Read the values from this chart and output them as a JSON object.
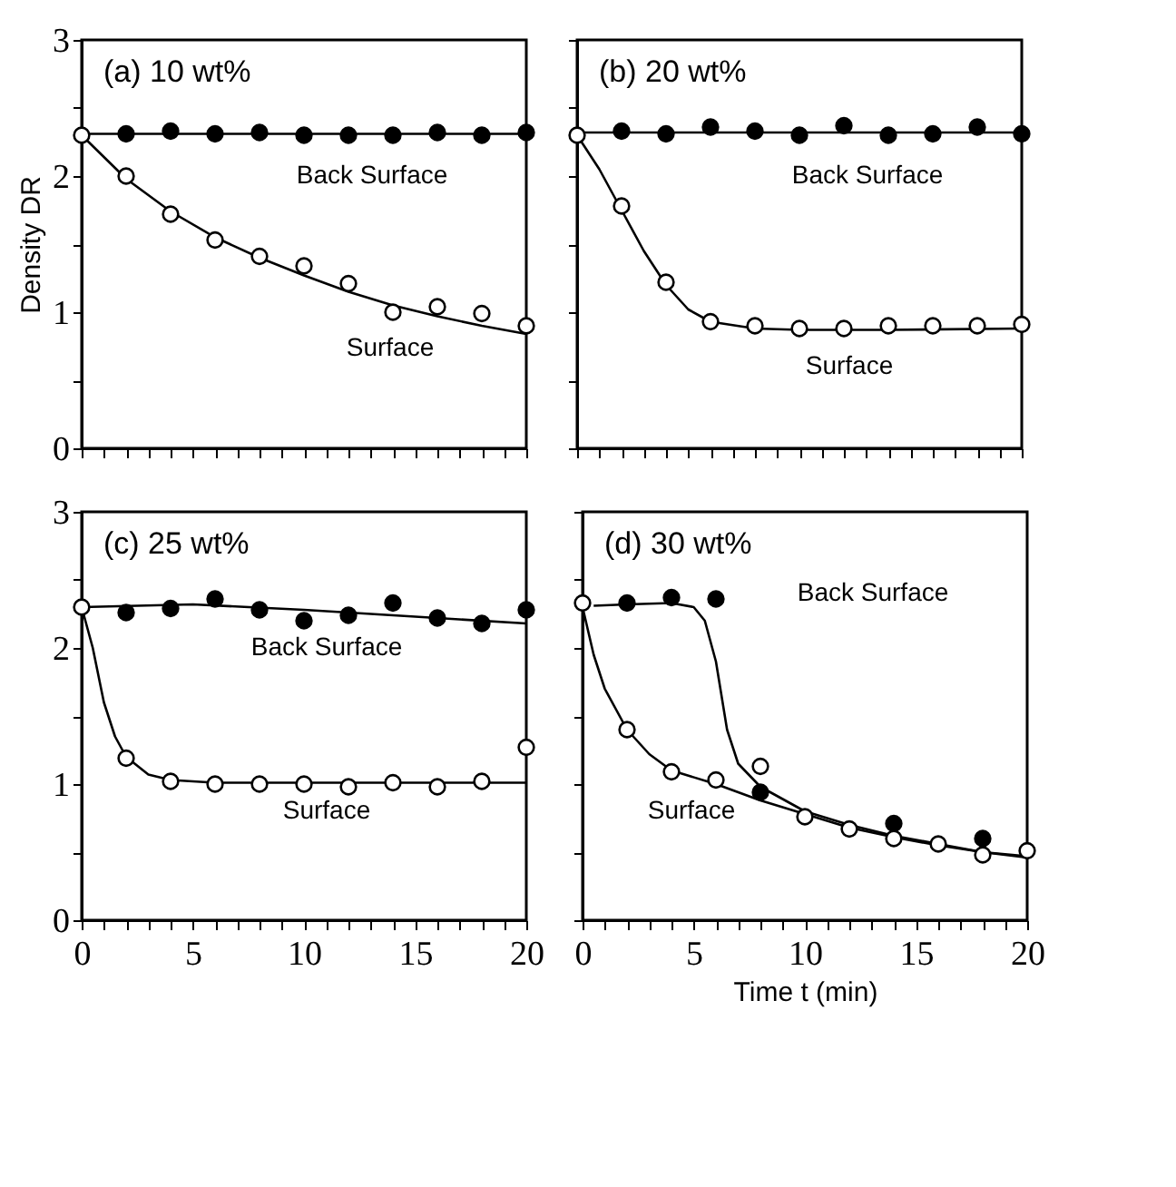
{
  "chart_data": [
    {
      "type": "scatter",
      "title": "(a)  10 wt%",
      "ylabel": "Density DR",
      "xlim": [
        0,
        20
      ],
      "ylim": [
        0,
        3
      ],
      "tick_labels": "y",
      "grid": false,
      "xticks": [
        0,
        {
          "value": 1,
          "label": null
        },
        {
          "value": 2,
          "label": null
        },
        {
          "value": 3,
          "label": null
        },
        {
          "value": 4,
          "label": null
        },
        5,
        {
          "value": 6,
          "label": null
        },
        {
          "value": 7,
          "label": null
        },
        {
          "value": 8,
          "label": null
        },
        {
          "value": 9,
          "label": null
        },
        10,
        {
          "value": 11,
          "label": null
        },
        {
          "value": 12,
          "label": null
        },
        {
          "value": 13,
          "label": null
        },
        {
          "value": 14,
          "label": null
        },
        15,
        {
          "value": 16,
          "label": null
        },
        {
          "value": 17,
          "label": null
        },
        {
          "value": 18,
          "label": null
        },
        {
          "value": 19,
          "label": null
        },
        20
      ],
      "yticks": [
        0,
        {
          "value": 0.5,
          "label": null
        },
        1,
        {
          "value": 1.5,
          "label": null
        },
        2,
        {
          "value": 2.5,
          "label": null
        },
        3
      ],
      "series": [
        {
          "type": "line",
          "color": "#000000",
          "x": [
            0,
            20
          ],
          "values": [
            2.31,
            2.31
          ]
        },
        {
          "type": "line",
          "color": "#000000",
          "x": [
            0,
            2,
            4,
            6,
            8,
            10,
            12,
            14,
            16,
            18,
            20
          ],
          "values": [
            2.3,
            1.98,
            1.74,
            1.55,
            1.4,
            1.27,
            1.15,
            1.05,
            0.97,
            0.9,
            0.84
          ]
        },
        {
          "type": "scatter",
          "marker": "circle",
          "color": "#000000",
          "x": [
            2,
            4,
            6,
            8,
            10,
            12,
            14,
            16,
            18,
            20
          ],
          "values": [
            2.31,
            2.33,
            2.31,
            2.32,
            2.3,
            2.3,
            2.3,
            2.32,
            2.3,
            2.32
          ]
        },
        {
          "type": "scatter",
          "marker": "circle",
          "color": "#ffffff",
          "x": [
            0,
            2,
            4,
            6,
            8,
            10,
            12,
            14,
            16,
            18,
            20
          ],
          "values": [
            2.3,
            2.0,
            1.72,
            1.53,
            1.41,
            1.34,
            1.21,
            1.0,
            1.04,
            0.99,
            0.9
          ]
        }
      ],
      "annotations": [
        "Back Surface",
        "Surface"
      ]
    },
    {
      "type": "scatter",
      "title": "(b)  20 wt%",
      "xlim": [
        0,
        20
      ],
      "ylim": [
        0,
        3
      ],
      "tick_labels": false,
      "grid": false,
      "xticks": [
        0,
        {
          "value": 1,
          "label": null
        },
        {
          "value": 2,
          "label": null
        },
        {
          "value": 3,
          "label": null
        },
        {
          "value": 4,
          "label": null
        },
        5,
        {
          "value": 6,
          "label": null
        },
        {
          "value": 7,
          "label": null
        },
        {
          "value": 8,
          "label": null
        },
        {
          "value": 9,
          "label": null
        },
        10,
        {
          "value": 11,
          "label": null
        },
        {
          "value": 12,
          "label": null
        },
        {
          "value": 13,
          "label": null
        },
        {
          "value": 14,
          "label": null
        },
        15,
        {
          "value": 16,
          "label": null
        },
        {
          "value": 17,
          "label": null
        },
        {
          "value": 18,
          "label": null
        },
        {
          "value": 19,
          "label": null
        },
        20
      ],
      "yticks": [
        0,
        {
          "value": 0.5,
          "label": null
        },
        1,
        {
          "value": 1.5,
          "label": null
        },
        2,
        {
          "value": 2.5,
          "label": null
        },
        3
      ],
      "series": [
        {
          "type": "line",
          "color": "#000000",
          "x": [
            0,
            20
          ],
          "values": [
            2.32,
            2.32
          ]
        },
        {
          "type": "line",
          "color": "#000000",
          "x": [
            0,
            1,
            2,
            3,
            4,
            5,
            6,
            8,
            10,
            14,
            20
          ],
          "values": [
            2.3,
            2.05,
            1.75,
            1.45,
            1.2,
            1.02,
            0.93,
            0.88,
            0.87,
            0.87,
            0.88
          ]
        },
        {
          "type": "scatter",
          "marker": "circle",
          "color": "#000000",
          "x": [
            2,
            4,
            6,
            8,
            10,
            12,
            14,
            16,
            18,
            20
          ],
          "values": [
            2.33,
            2.31,
            2.36,
            2.33,
            2.3,
            2.37,
            2.3,
            2.31,
            2.36,
            2.31
          ]
        },
        {
          "type": "scatter",
          "marker": "circle",
          "color": "#ffffff",
          "x": [
            0,
            2,
            4,
            6,
            8,
            10,
            12,
            14,
            16,
            18,
            20
          ],
          "values": [
            2.3,
            1.78,
            1.22,
            0.93,
            0.9,
            0.88,
            0.88,
            0.9,
            0.9,
            0.9,
            0.91
          ]
        }
      ],
      "annotations": [
        "Back Surface",
        "Surface"
      ]
    },
    {
      "type": "scatter",
      "title": "(c)  25 wt%",
      "xlim": [
        0,
        20
      ],
      "ylim": [
        0,
        3
      ],
      "grid": false,
      "xticks": [
        0,
        {
          "value": 1,
          "label": null
        },
        {
          "value": 2,
          "label": null
        },
        {
          "value": 3,
          "label": null
        },
        {
          "value": 4,
          "label": null
        },
        5,
        {
          "value": 6,
          "label": null
        },
        {
          "value": 7,
          "label": null
        },
        {
          "value": 8,
          "label": null
        },
        {
          "value": 9,
          "label": null
        },
        10,
        {
          "value": 11,
          "label": null
        },
        {
          "value": 12,
          "label": null
        },
        {
          "value": 13,
          "label": null
        },
        {
          "value": 14,
          "label": null
        },
        15,
        {
          "value": 16,
          "label": null
        },
        {
          "value": 17,
          "label": null
        },
        {
          "value": 18,
          "label": null
        },
        {
          "value": 19,
          "label": null
        },
        20
      ],
      "yticks": [
        0,
        {
          "value": 0.5,
          "label": null
        },
        1,
        {
          "value": 1.5,
          "label": null
        },
        2,
        {
          "value": 2.5,
          "label": null
        },
        3
      ],
      "series": [
        {
          "type": "line",
          "color": "#000000",
          "x": [
            0,
            5,
            10,
            15,
            20
          ],
          "values": [
            2.3,
            2.32,
            2.28,
            2.23,
            2.18
          ]
        },
        {
          "type": "line",
          "color": "#000000",
          "x": [
            0,
            0.5,
            1,
            1.5,
            2,
            3,
            4,
            6,
            20
          ],
          "values": [
            2.3,
            2.0,
            1.6,
            1.35,
            1.2,
            1.07,
            1.03,
            1.01,
            1.01
          ]
        },
        {
          "type": "scatter",
          "marker": "circle",
          "color": "#000000",
          "x": [
            2,
            4,
            6,
            8,
            10,
            12,
            14,
            16,
            18,
            20
          ],
          "values": [
            2.26,
            2.29,
            2.36,
            2.28,
            2.2,
            2.24,
            2.33,
            2.22,
            2.18,
            2.28
          ]
        },
        {
          "type": "scatter",
          "marker": "circle",
          "color": "#ffffff",
          "x": [
            0,
            2,
            4,
            6,
            8,
            10,
            12,
            14,
            16,
            18,
            20
          ],
          "values": [
            2.3,
            1.19,
            1.02,
            1.0,
            1.0,
            1.0,
            0.98,
            1.01,
            0.98,
            1.02,
            1.27
          ]
        }
      ],
      "annotations": [
        "Back Surface",
        "Surface"
      ]
    },
    {
      "type": "scatter",
      "title": "(d)  30 wt%",
      "xlabel": "Time t (min)",
      "xlim": [
        0,
        20
      ],
      "ylim": [
        0,
        3
      ],
      "tick_labels": "x",
      "grid": false,
      "xticks": [
        0,
        {
          "value": 1,
          "label": null
        },
        {
          "value": 2,
          "label": null
        },
        {
          "value": 3,
          "label": null
        },
        {
          "value": 4,
          "label": null
        },
        5,
        {
          "value": 6,
          "label": null
        },
        {
          "value": 7,
          "label": null
        },
        {
          "value": 8,
          "label": null
        },
        {
          "value": 9,
          "label": null
        },
        10,
        {
          "value": 11,
          "label": null
        },
        {
          "value": 12,
          "label": null
        },
        {
          "value": 13,
          "label": null
        },
        {
          "value": 14,
          "label": null
        },
        15,
        {
          "value": 16,
          "label": null
        },
        {
          "value": 17,
          "label": null
        },
        {
          "value": 18,
          "label": null
        },
        {
          "value": 19,
          "label": null
        },
        20
      ],
      "yticks": [
        0,
        {
          "value": 0.5,
          "label": null
        },
        1,
        {
          "value": 1.5,
          "label": null
        },
        2,
        {
          "value": 2.5,
          "label": null
        },
        3
      ],
      "series": [
        {
          "type": "line",
          "color": "#000000",
          "x": [
            0.5,
            2,
            4,
            5,
            5.5,
            6,
            6.5,
            7,
            8,
            10,
            12,
            14,
            16,
            18,
            20
          ],
          "values": [
            2.31,
            2.32,
            2.33,
            2.3,
            2.2,
            1.9,
            1.4,
            1.15,
            0.98,
            0.8,
            0.7,
            0.62,
            0.56,
            0.5,
            0.47
          ]
        },
        {
          "type": "line",
          "color": "#000000",
          "x": [
            0,
            0.5,
            1,
            2,
            3,
            4,
            6,
            8,
            10,
            12,
            14,
            16,
            18,
            20
          ],
          "values": [
            2.3,
            1.95,
            1.7,
            1.4,
            1.22,
            1.1,
            1.0,
            0.88,
            0.78,
            0.68,
            0.61,
            0.55,
            0.5,
            0.46
          ]
        },
        {
          "type": "scatter",
          "marker": "circle",
          "color": "#000000",
          "x": [
            2,
            4,
            6,
            8,
            14,
            18
          ],
          "values": [
            2.33,
            2.37,
            2.36,
            0.94,
            0.71,
            0.6
          ]
        },
        {
          "type": "scatter",
          "marker": "circle",
          "color": "#ffffff",
          "x": [
            0,
            2,
            4,
            6,
            8,
            10,
            12,
            14,
            16,
            18,
            20
          ],
          "values": [
            2.33,
            1.4,
            1.09,
            1.03,
            1.13,
            0.76,
            0.67,
            0.6,
            0.56,
            0.48,
            0.51
          ]
        }
      ],
      "annotations": [
        "Back Surface",
        "Surface"
      ]
    }
  ]
}
